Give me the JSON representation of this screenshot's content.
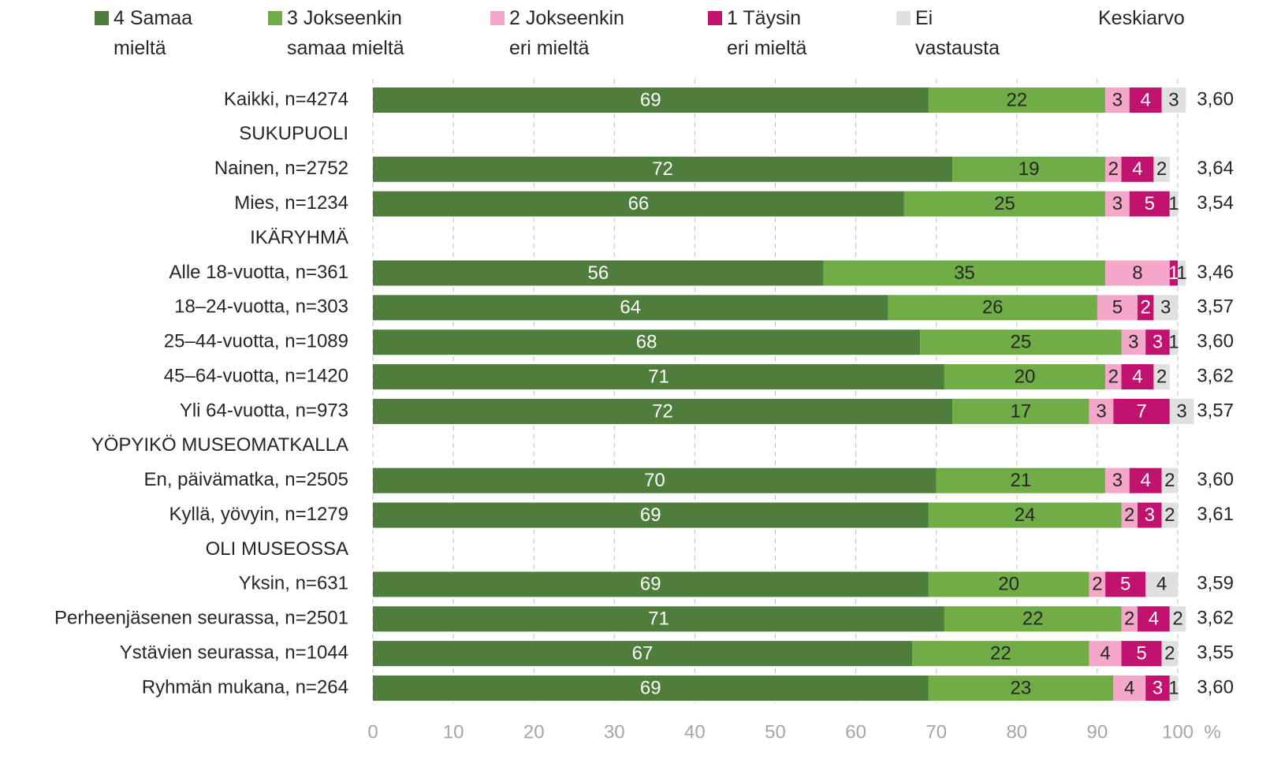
{
  "chart_data": {
    "type": "stacked-barh",
    "categories": [
      "Kaikki, n=4274",
      "SUKUPUOLI",
      "Nainen, n=2752",
      "Mies, n=1234",
      "IKÄRYHMÄ",
      "Alle 18-vuotta, n=361",
      "18–24-vuotta, n=303",
      "25–44-vuotta, n=1089",
      "45–64-vuotta, n=1420",
      "Yli 64-vuotta, n=973",
      "YÖPYIKÖ MUSEOMATKALLA",
      "En, päivämatka, n=2505",
      "Kyllä, yövyin, n=1279",
      "OLI MUSEOSSA",
      "Yksin, n=631",
      "Perheenjäsenen seurassa, n=2501",
      "Ystävien seurassa, n=1044",
      "Ryhmän mukana, n=264"
    ],
    "series": [
      {
        "name": "4 Samaa mieltä",
        "color": "#4e7d3c",
        "label_color": "#ffffff",
        "values": [
          69,
          null,
          72,
          66,
          null,
          56,
          64,
          68,
          71,
          72,
          null,
          70,
          69,
          null,
          69,
          71,
          67,
          69
        ]
      },
      {
        "name": "3 Jokseenkin samaa mieltä",
        "color": "#70ad47",
        "label_color": "#262626",
        "values": [
          22,
          null,
          19,
          25,
          null,
          35,
          26,
          25,
          20,
          17,
          null,
          21,
          24,
          null,
          20,
          22,
          22,
          23
        ]
      },
      {
        "name": "2 Jokseenkin eri mieltä",
        "color": "#f4a7c9",
        "label_color": "#262626",
        "values": [
          3,
          null,
          2,
          3,
          null,
          8,
          5,
          3,
          2,
          3,
          null,
          3,
          2,
          null,
          2,
          2,
          4,
          4
        ]
      },
      {
        "name": "1 Täysin eri mieltä",
        "color": "#c2126f",
        "label_color": "#ffffff",
        "values": [
          4,
          null,
          4,
          5,
          null,
          1,
          2,
          3,
          4,
          7,
          null,
          4,
          3,
          null,
          5,
          4,
          5,
          3
        ]
      },
      {
        "name": "Ei vastausta",
        "color": "#e0e0e0",
        "label_color": "#262626",
        "values": [
          3,
          null,
          2,
          1,
          null,
          1,
          3,
          1,
          2,
          3,
          null,
          2,
          2,
          null,
          4,
          2,
          2,
          1
        ]
      }
    ],
    "mean": {
      "title": "Keskiarvo",
      "values": [
        3.6,
        null,
        3.64,
        3.54,
        null,
        3.46,
        3.57,
        3.6,
        3.62,
        3.57,
        null,
        3.6,
        3.61,
        null,
        3.59,
        3.62,
        3.55,
        3.6
      ],
      "value_labels": [
        "3,60",
        null,
        "3,64",
        "3,54",
        null,
        "3,46",
        "3,57",
        "3,60",
        "3,62",
        "3,57",
        null,
        "3,60",
        "3,61",
        null,
        "3,59",
        "3,62",
        "3,55",
        "3,60"
      ]
    },
    "xlim": [
      0,
      100
    ],
    "xticks": [
      0,
      10,
      20,
      30,
      40,
      50,
      60,
      70,
      80,
      90,
      100
    ],
    "xlabel": "%",
    "grid": true
  }
}
